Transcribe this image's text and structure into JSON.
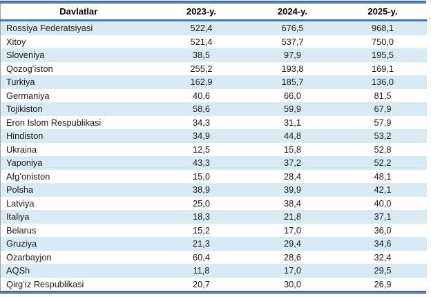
{
  "table": {
    "headers": [
      "Davlatlar",
      "2023-y.",
      "2024-y.",
      "2025-y."
    ],
    "rows": [
      {
        "country": "Rossiya Federatsiyasi",
        "y2023": "522,4",
        "y2024": "676,5",
        "y2025": "968,1"
      },
      {
        "country": "Xitoy",
        "y2023": "521,4",
        "y2024": "537,7",
        "y2025": "750,0"
      },
      {
        "country": "Sloveniya",
        "y2023": "38,5",
        "y2024": "97,9",
        "y2025": "195,5"
      },
      {
        "country": "Qozogʻiston",
        "y2023": "255,2",
        "y2024": "193,8",
        "y2025": "169,1"
      },
      {
        "country": "Turkiya",
        "y2023": "162,9",
        "y2024": "185,7",
        "y2025": "136,0"
      },
      {
        "country": "Germaniya",
        "y2023": "40,6",
        "y2024": "66,0",
        "y2025": "81,5"
      },
      {
        "country": "Tojikiston",
        "y2023": "58,6",
        "y2024": "59,9",
        "y2025": "67,9"
      },
      {
        "country": "Eron Islom Respublikasi",
        "y2023": "34,3",
        "y2024": "31,1",
        "y2025": "57,9"
      },
      {
        "country": "Hindiston",
        "y2023": "34,9",
        "y2024": "44,8",
        "y2025": "53,2"
      },
      {
        "country": "Ukraina",
        "y2023": "12,5",
        "y2024": "15,8",
        "y2025": "52,8"
      },
      {
        "country": "Yaponiya",
        "y2023": "43,3",
        "y2024": "37,2",
        "y2025": "52,2"
      },
      {
        "country": "Afgʻoniston",
        "y2023": "15,0",
        "y2024": "28,4",
        "y2025": "48,1"
      },
      {
        "country": "Polsha",
        "y2023": "38,9",
        "y2024": "39,9",
        "y2025": "42,1"
      },
      {
        "country": "Latviya",
        "y2023": "25,0",
        "y2024": "38,4",
        "y2025": "40,0"
      },
      {
        "country": "Italiya",
        "y2023": "18,3",
        "y2024": "21,8",
        "y2025": "37,1"
      },
      {
        "country": "Belarus",
        "y2023": "15,2",
        "y2024": "17,0",
        "y2025": "36,0"
      },
      {
        "country": "Gruziya",
        "y2023": "21,3",
        "y2024": "29,4",
        "y2025": "34,6"
      },
      {
        "country": "Ozarbayjon",
        "y2023": "60,4",
        "y2024": "28,6",
        "y2025": "32,4"
      },
      {
        "country": "AQSh",
        "y2023": "11,8",
        "y2024": "17,0",
        "y2025": "29,5"
      },
      {
        "country": "Qirgʻiz Respublikasi",
        "y2023": "20,7",
        "y2024": "30,0",
        "y2025": "26,9"
      }
    ]
  },
  "colors": {
    "row_alt": "#daeaf3",
    "border_mid_blue": "#5b87b8",
    "border_dark_blue": "#24466e",
    "header_underline": "#4a77ab"
  }
}
